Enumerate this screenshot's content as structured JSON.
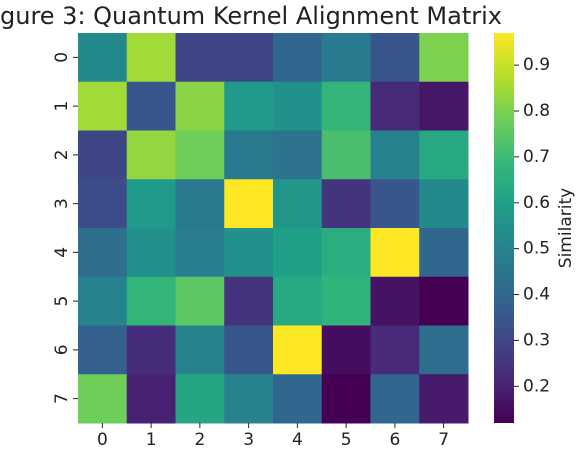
{
  "chart_data": {
    "type": "heatmap",
    "title": "gure 3: Quantum Kernel Alignment Matrix",
    "x_categories": [
      "0",
      "1",
      "2",
      "3",
      "4",
      "5",
      "6",
      "7"
    ],
    "y_categories": [
      "0",
      "1",
      "2",
      "3",
      "4",
      "5",
      "6",
      "7"
    ],
    "values": [
      [
        0.52,
        0.85,
        0.3,
        0.3,
        0.4,
        0.47,
        0.35,
        0.8
      ],
      [
        0.85,
        0.35,
        0.82,
        0.58,
        0.55,
        0.68,
        0.22,
        0.17
      ],
      [
        0.3,
        0.83,
        0.78,
        0.47,
        0.44,
        0.72,
        0.5,
        0.63
      ],
      [
        0.32,
        0.58,
        0.47,
        0.97,
        0.57,
        0.25,
        0.35,
        0.52
      ],
      [
        0.43,
        0.55,
        0.48,
        0.55,
        0.6,
        0.65,
        0.97,
        0.4
      ],
      [
        0.5,
        0.68,
        0.75,
        0.25,
        0.63,
        0.67,
        0.16,
        0.12
      ],
      [
        0.38,
        0.23,
        0.5,
        0.35,
        0.97,
        0.15,
        0.22,
        0.42
      ],
      [
        0.78,
        0.2,
        0.62,
        0.5,
        0.4,
        0.12,
        0.4,
        0.18
      ]
    ],
    "colormap": [
      "#440154",
      "#482878",
      "#3e4989",
      "#31688e",
      "#26828e",
      "#1f9e89",
      "#35b779",
      "#6ece58",
      "#b5de2b",
      "#fde725"
    ],
    "zlim": [
      0.12,
      0.97
    ],
    "colorbar_ticks": [
      0.2,
      0.3,
      0.4,
      0.5,
      0.6,
      0.7,
      0.8,
      0.9
    ],
    "colorbar_label": "Similarity"
  }
}
